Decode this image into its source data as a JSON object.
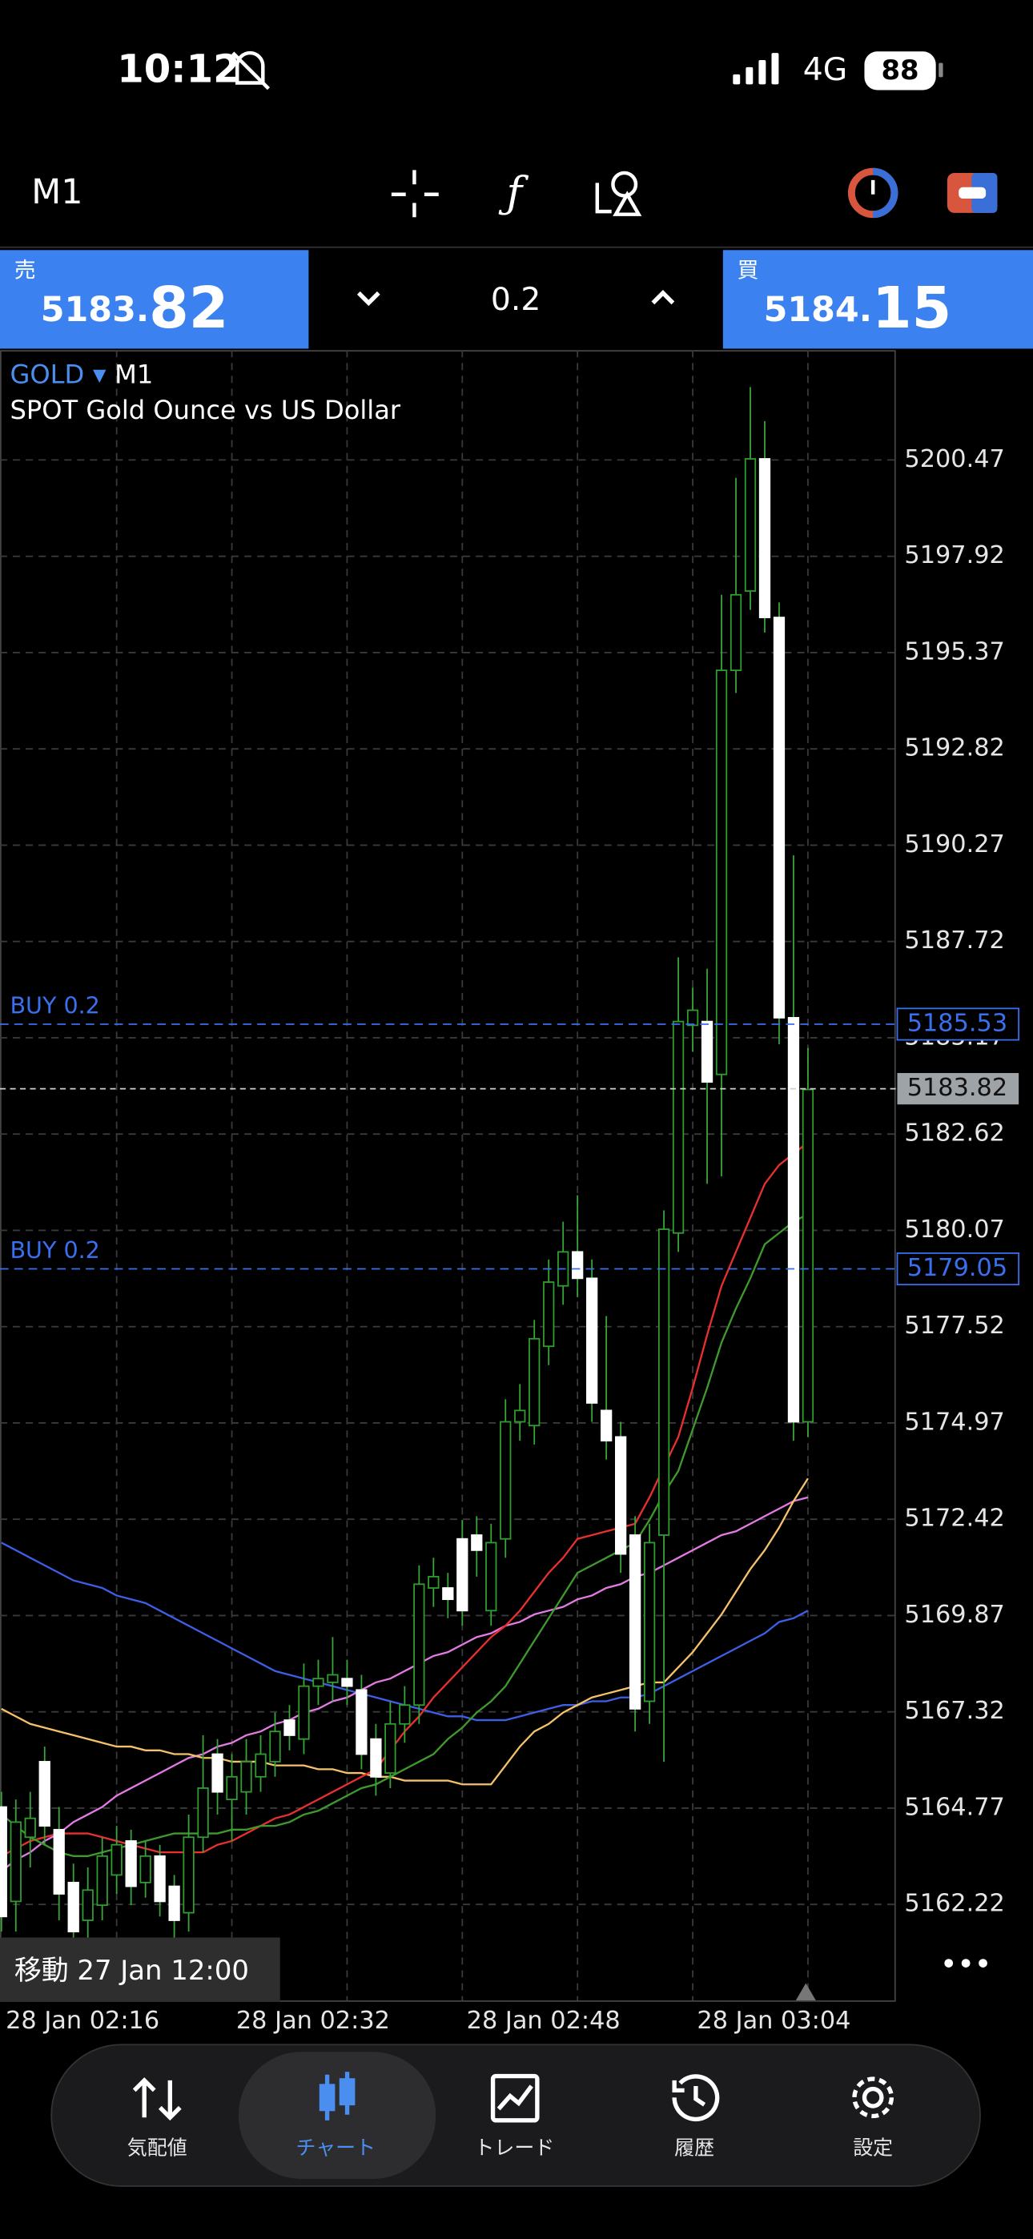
{
  "status_bar": {
    "time": "10:12",
    "network": "4G",
    "battery": "88"
  },
  "toolbar": {
    "timeframe": "M1"
  },
  "trade_panel": {
    "sell": {
      "label": "売",
      "price_small": "5183.",
      "price_big": "82"
    },
    "volume": "0.2",
    "buy": {
      "label": "買",
      "price_small": "5184.",
      "price_big": "15"
    }
  },
  "chart_data": {
    "type": "candlestick",
    "symbol": "GOLD",
    "timeframe": "M1",
    "subtitle": "SPOT Gold Ounce vs US Dollar",
    "categories": [
      "28 Jan 02:16",
      null,
      null,
      null,
      null,
      null,
      null,
      null,
      null,
      null,
      null,
      null,
      null,
      null,
      null,
      null,
      "28 Jan 02:32",
      null,
      null,
      null,
      null,
      null,
      null,
      null,
      null,
      null,
      null,
      null,
      null,
      null,
      null,
      null,
      "28 Jan 02:48",
      null,
      null,
      null,
      null,
      null,
      null,
      null,
      null,
      null,
      null,
      null,
      null,
      null,
      null,
      null,
      "28 Jan 03:04",
      null,
      null,
      null,
      null,
      null,
      null,
      null,
      null
    ],
    "open": [
      5164.8,
      5162.3,
      5164.0,
      5166.0,
      5164.2,
      5162.8,
      5161.8,
      5162.2,
      5163.0,
      5163.9,
      5162.8,
      5163.5,
      5162.7,
      5162.0,
      5164.0,
      5166.2,
      5165.0,
      5165.2,
      5165.6,
      5166.0,
      5167.1,
      5166.6,
      5168.0,
      5168.1,
      5168.2,
      5167.9,
      5166.6,
      5165.7,
      5167.0,
      5167.5,
      5170.6,
      5170.6,
      5171.9,
      5172.0,
      5170.0,
      5171.9,
      5175.0,
      5174.9,
      5177.0,
      5178.6,
      5179.5,
      5178.8,
      5175.3,
      5174.6,
      5172.0,
      5167.6,
      5172.0,
      5180.0,
      5185.5,
      5185.6,
      5184.2,
      5194.9,
      5197.0,
      5200.5,
      5196.3,
      5185.7,
      5175.0
    ],
    "high": [
      5165.2,
      5165.0,
      5165.2,
      5166.4,
      5164.8,
      5163.3,
      5163.2,
      5164.0,
      5164.3,
      5164.2,
      5163.9,
      5163.8,
      5163.0,
      5164.6,
      5166.7,
      5166.6,
      5166.2,
      5166.6,
      5166.7,
      5167.3,
      5167.5,
      5168.6,
      5168.7,
      5169.3,
      5168.7,
      5168.3,
      5167.0,
      5167.6,
      5168.0,
      5171.2,
      5171.4,
      5171.0,
      5172.4,
      5172.5,
      5172.3,
      5175.6,
      5176.0,
      5177.7,
      5179.3,
      5180.3,
      5181.0,
      5179.3,
      5177.8,
      5175.0,
      5172.5,
      5172.3,
      5180.6,
      5187.3,
      5186.5,
      5187.0,
      5196.9,
      5200.0,
      5202.4,
      5201.5,
      5196.7,
      5190.0,
      5184.9
    ],
    "low": [
      5161.5,
      5161.5,
      5163.2,
      5163.8,
      5161.8,
      5160.9,
      5161.2,
      5161.8,
      5162.5,
      5162.2,
      5162.4,
      5161.9,
      5161.2,
      5161.5,
      5163.6,
      5164.6,
      5163.9,
      5164.6,
      5165.2,
      5165.6,
      5166.3,
      5166.2,
      5167.5,
      5167.6,
      5167.5,
      5165.8,
      5165.1,
      5165.3,
      5166.5,
      5167.0,
      5170.1,
      5169.8,
      5169.6,
      5170.9,
      5169.6,
      5171.4,
      5174.5,
      5174.4,
      5176.5,
      5178.1,
      5178.3,
      5175.0,
      5174.0,
      5171.0,
      5166.8,
      5167.0,
      5166.0,
      5179.5,
      5184.8,
      5181.3,
      5181.5,
      5194.3,
      5196.5,
      5195.9,
      5185.0,
      5174.5,
      5174.6
    ],
    "close": [
      5161.9,
      5164.4,
      5164.5,
      5164.3,
      5162.5,
      5161.5,
      5162.6,
      5163.5,
      5163.8,
      5162.7,
      5163.5,
      5162.3,
      5161.8,
      5164.0,
      5165.3,
      5165.2,
      5165.6,
      5166.0,
      5166.2,
      5166.8,
      5166.7,
      5168.0,
      5168.2,
      5168.3,
      5168.0,
      5166.2,
      5165.6,
      5167.0,
      5167.5,
      5170.7,
      5170.9,
      5170.3,
      5170.0,
      5171.6,
      5171.8,
      5175.0,
      5175.3,
      5177.2,
      5178.7,
      5179.5,
      5178.8,
      5175.5,
      5174.5,
      5171.5,
      5167.4,
      5171.8,
      5180.1,
      5185.6,
      5185.9,
      5184.0,
      5194.9,
      5196.9,
      5200.5,
      5196.3,
      5185.7,
      5175.0,
      5183.8
    ],
    "up_color": "#2f9e2f",
    "down_color": "#ffffff",
    "wick_color": "#3aa63a",
    "series": [
      {
        "color": "#3d5fe6",
        "values": [
          5171.8,
          5171.6,
          5171.4,
          5171.2,
          5171.0,
          5170.8,
          5170.7,
          5170.6,
          5170.4,
          5170.3,
          5170.2,
          5170.0,
          5169.8,
          5169.6,
          5169.4,
          5169.2,
          5169.0,
          5168.8,
          5168.6,
          5168.4,
          5168.3,
          5168.2,
          5168.1,
          5168.0,
          5167.9,
          5167.8,
          5167.7,
          5167.6,
          5167.5,
          5167.4,
          5167.3,
          5167.2,
          5167.2,
          5167.1,
          5167.1,
          5167.1,
          5167.2,
          5167.3,
          5167.4,
          5167.5,
          5167.5,
          5167.6,
          5167.6,
          5167.7,
          5167.7,
          5167.8,
          5168.0,
          5168.2,
          5168.4,
          5168.6,
          5168.8,
          5169.0,
          5169.2,
          5169.4,
          5169.7,
          5169.8,
          5170.0
        ]
      },
      {
        "color": "#e47ae4",
        "values": [
          5163.1,
          5163.4,
          5163.6,
          5163.9,
          5164.1,
          5164.4,
          5164.6,
          5164.8,
          5165.1,
          5165.3,
          5165.5,
          5165.7,
          5165.9,
          5166.1,
          5166.2,
          5166.4,
          5166.5,
          5166.7,
          5166.8,
          5167.0,
          5167.1,
          5167.3,
          5167.4,
          5167.6,
          5167.7,
          5167.9,
          5168.1,
          5168.2,
          5168.4,
          5168.6,
          5168.8,
          5168.9,
          5169.1,
          5169.3,
          5169.4,
          5169.6,
          5169.7,
          5169.9,
          5170.0,
          5170.1,
          5170.3,
          5170.4,
          5170.6,
          5170.7,
          5170.9,
          5171.0,
          5171.2,
          5171.4,
          5171.6,
          5171.8,
          5172.0,
          5172.1,
          5172.3,
          5172.5,
          5172.7,
          5172.9,
          5173.0
        ]
      },
      {
        "color": "#f5c26b",
        "values": [
          5167.4,
          5167.2,
          5167.0,
          5166.9,
          5166.8,
          5166.7,
          5166.6,
          5166.5,
          5166.4,
          5166.4,
          5166.3,
          5166.3,
          5166.2,
          5166.2,
          5166.1,
          5166.1,
          5166.0,
          5166.0,
          5166.0,
          5165.9,
          5165.9,
          5165.9,
          5165.8,
          5165.8,
          5165.7,
          5165.7,
          5165.6,
          5165.6,
          5165.5,
          5165.5,
          5165.5,
          5165.5,
          5165.4,
          5165.4,
          5165.4,
          5165.9,
          5166.4,
          5166.8,
          5167.0,
          5167.3,
          5167.5,
          5167.7,
          5167.8,
          5167.9,
          5168.0,
          5168.1,
          5168.1,
          5168.5,
          5168.9,
          5169.4,
          5169.9,
          5170.5,
          5171.1,
          5171.6,
          5172.2,
          5172.9,
          5173.5
        ]
      },
      {
        "color": "#e8302e",
        "values": [
          5163.5,
          5163.7,
          5163.9,
          5164.0,
          5164.1,
          5164.1,
          5164.1,
          5164.0,
          5163.9,
          5163.8,
          5163.7,
          5163.6,
          5163.6,
          5163.6,
          5163.6,
          5163.8,
          5163.9,
          5164.1,
          5164.3,
          5164.5,
          5164.6,
          5164.8,
          5165.0,
          5165.2,
          5165.4,
          5165.6,
          5165.8,
          5166.3,
          5166.8,
          5167.2,
          5167.7,
          5168.1,
          5168.5,
          5168.9,
          5169.3,
          5169.6,
          5170.0,
          5170.5,
          5171.0,
          5171.4,
          5171.9,
          5172.0,
          5172.1,
          5172.2,
          5172.3,
          5173.0,
          5173.8,
          5174.6,
          5175.9,
          5177.3,
          5178.6,
          5179.5,
          5180.4,
          5181.3,
          5181.8,
          5182.1,
          5182.4
        ]
      },
      {
        "color": "#3f9a2e",
        "values": [
          5164.6,
          5164.3,
          5164.0,
          5163.8,
          5163.6,
          5163.5,
          5163.5,
          5163.6,
          5163.7,
          5163.8,
          5163.9,
          5164.0,
          5164.1,
          5164.1,
          5164.1,
          5164.1,
          5164.2,
          5164.2,
          5164.3,
          5164.3,
          5164.4,
          5164.6,
          5164.7,
          5164.9,
          5165.1,
          5165.3,
          5165.4,
          5165.6,
          5165.8,
          5166.0,
          5166.2,
          5166.6,
          5166.9,
          5167.3,
          5167.6,
          5168.0,
          5168.6,
          5169.2,
          5169.8,
          5170.4,
          5171.0,
          5171.2,
          5171.4,
          5171.6,
          5171.8,
          5172.4,
          5173.1,
          5173.7,
          5174.8,
          5175.9,
          5177.1,
          5178.0,
          5178.8,
          5179.7,
          5180.0,
          5180.3,
          5180.5
        ]
      }
    ],
    "ylim": [
      5159.68,
      5203.38
    ],
    "yticks": [
      5162.22,
      5164.77,
      5167.32,
      5169.87,
      5172.42,
      5174.97,
      5177.52,
      5180.07,
      5182.62,
      5185.17,
      5187.72,
      5190.27,
      5192.82,
      5195.37,
      5197.92,
      5200.47
    ],
    "grid": true,
    "levels": [
      {
        "label": "BUY 0.2",
        "value": 5185.53,
        "color": "#3a6ff0"
      },
      {
        "label": "BUY 0.2",
        "value": 5179.05,
        "color": "#3a6ff0"
      }
    ],
    "bid": {
      "value": 5183.82,
      "color": "#9ea3a8"
    }
  },
  "chart_footer": {
    "scroll_label": "移動 27 Jan 12:00"
  },
  "tab_bar": {
    "tabs": [
      "気配値",
      "チャート",
      "トレード",
      "履歴",
      "設定"
    ]
  }
}
